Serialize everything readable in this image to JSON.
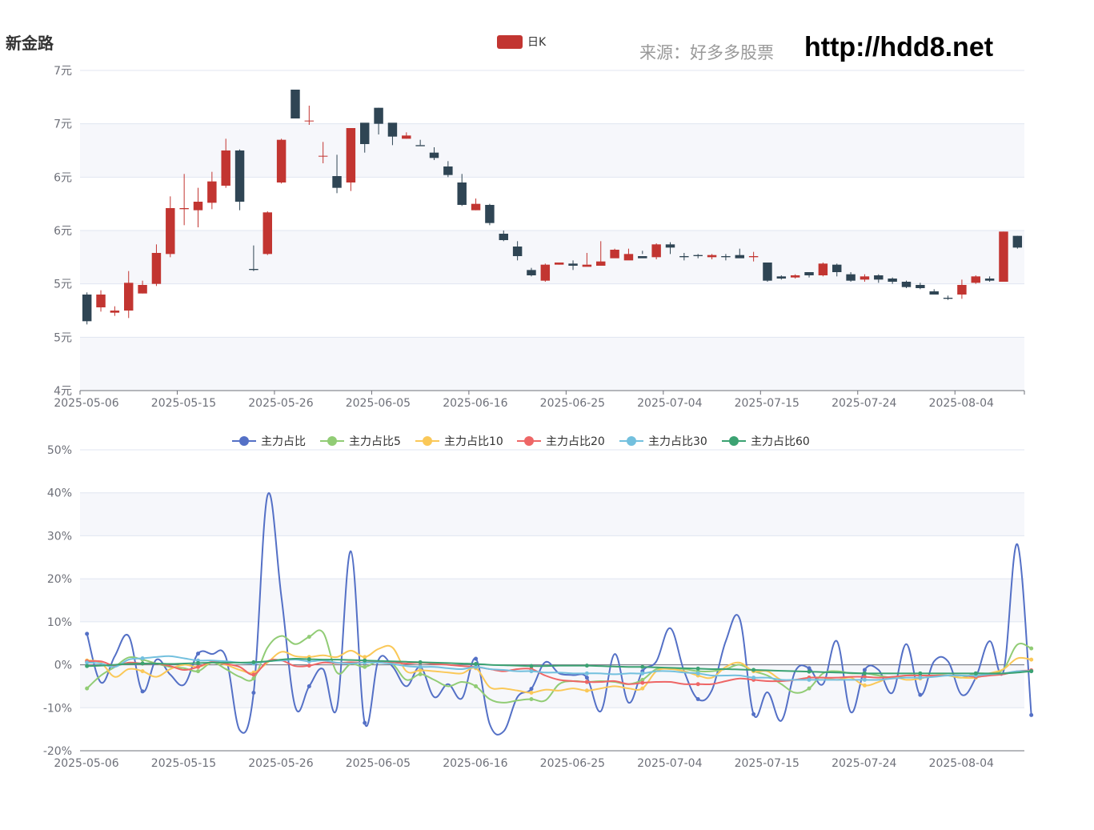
{
  "title": "新金路",
  "source_label": "来源：好多多股票",
  "site_url": "http://hdd8.net",
  "colors": {
    "up": "#c23531",
    "down": "#2f4554",
    "grid": "#e0e6f1",
    "band": "#f6f7fb"
  },
  "chart_data": [
    {
      "type": "candlestick",
      "legend": [
        {
          "name": "日K",
          "color": "#c23531"
        }
      ],
      "x_tick_labels": [
        "2025-05-06",
        "2025-05-15",
        "2025-05-26",
        "2025-06-05",
        "2025-06-16",
        "2025-06-25",
        "2025-07-04",
        "2025-07-15",
        "2025-07-24",
        "2025-08-04"
      ],
      "y_tick_labels": [
        "4元",
        "5元",
        "5元",
        "6元",
        "6元",
        "7元",
        "7元"
      ],
      "ylim": [
        4.1,
        7.1
      ],
      "ohlc": [
        [
          5.0,
          4.75,
          5.02,
          4.72
        ],
        [
          4.88,
          5.0,
          5.04,
          4.84
        ],
        [
          4.83,
          4.85,
          4.89,
          4.8
        ],
        [
          4.85,
          5.11,
          5.22,
          4.78
        ],
        [
          5.01,
          5.09,
          5.13,
          5.01
        ],
        [
          5.1,
          5.39,
          5.47,
          5.08
        ],
        [
          5.38,
          5.81,
          5.92,
          5.35
        ],
        [
          5.8,
          5.81,
          6.13,
          5.65
        ],
        [
          5.79,
          5.87,
          6.0,
          5.63
        ],
        [
          5.86,
          6.06,
          6.15,
          5.8
        ],
        [
          6.02,
          6.35,
          6.46,
          6.0
        ],
        [
          6.35,
          5.87,
          6.36,
          5.79
        ],
        [
          5.24,
          5.23,
          5.46,
          5.22
        ],
        [
          5.38,
          5.77,
          5.78,
          5.37
        ],
        [
          6.05,
          6.45,
          6.46,
          6.04
        ],
        [
          6.92,
          6.65,
          6.8,
          6.65
        ],
        [
          6.63,
          6.63,
          6.77,
          6.59
        ],
        [
          6.3,
          6.3,
          6.43,
          6.23
        ],
        [
          6.11,
          6.0,
          6.31,
          5.95
        ],
        [
          6.05,
          6.56,
          6.56,
          5.97
        ],
        [
          6.61,
          6.41,
          6.5,
          6.33
        ],
        [
          6.75,
          6.6,
          6.75,
          6.5
        ],
        [
          6.61,
          6.48,
          6.59,
          6.4
        ],
        [
          6.46,
          6.49,
          6.52,
          6.46
        ],
        [
          6.4,
          6.39,
          6.45,
          6.4
        ],
        [
          6.33,
          6.28,
          6.38,
          6.26
        ],
        [
          6.2,
          6.12,
          6.25,
          6.1
        ],
        [
          6.05,
          5.84,
          6.13,
          5.83
        ],
        [
          5.79,
          5.85,
          5.9,
          5.79
        ],
        [
          5.84,
          5.67,
          5.85,
          5.65
        ],
        [
          5.57,
          5.51,
          5.6,
          5.5
        ],
        [
          5.45,
          5.36,
          5.5,
          5.32
        ],
        [
          5.23,
          5.18,
          5.25,
          5.17
        ],
        [
          5.13,
          5.28,
          5.29,
          5.12
        ],
        [
          5.28,
          5.3,
          5.29,
          5.28
        ],
        [
          5.29,
          5.27,
          5.32,
          5.23
        ],
        [
          5.26,
          5.28,
          5.39,
          5.28
        ],
        [
          5.27,
          5.31,
          5.5,
          5.27
        ],
        [
          5.34,
          5.42,
          5.43,
          5.35
        ],
        [
          5.32,
          5.38,
          5.43,
          5.34
        ],
        [
          5.36,
          5.34,
          5.41,
          5.38
        ],
        [
          5.35,
          5.47,
          5.48,
          5.33
        ],
        [
          5.47,
          5.44,
          5.49,
          5.38
        ],
        [
          5.36,
          5.35,
          5.39,
          5.32
        ],
        [
          5.37,
          5.36,
          5.38,
          5.34
        ],
        [
          5.35,
          5.37,
          5.38,
          5.33
        ],
        [
          5.36,
          5.35,
          5.38,
          5.32
        ],
        [
          5.37,
          5.34,
          5.43,
          5.36
        ],
        [
          5.35,
          5.36,
          5.4,
          5.31
        ],
        [
          5.3,
          5.13,
          5.3,
          5.12
        ],
        [
          5.17,
          5.15,
          5.18,
          5.14
        ],
        [
          5.16,
          5.18,
          5.19,
          5.15
        ],
        [
          5.21,
          5.18,
          5.21,
          5.16
        ],
        [
          5.18,
          5.29,
          5.3,
          5.17
        ],
        [
          5.28,
          5.21,
          5.29,
          5.17
        ],
        [
          5.19,
          5.13,
          5.21,
          5.12
        ],
        [
          5.14,
          5.17,
          5.19,
          5.12
        ],
        [
          5.18,
          5.14,
          5.19,
          5.11
        ],
        [
          5.15,
          5.12,
          5.16,
          5.1
        ],
        [
          5.12,
          5.07,
          5.13,
          5.06
        ],
        [
          5.09,
          5.06,
          5.11,
          5.05
        ],
        [
          5.03,
          5.0,
          5.05,
          5.0
        ],
        [
          4.97,
          4.96,
          4.99,
          4.95
        ],
        [
          5.0,
          5.09,
          5.14,
          4.96
        ],
        [
          5.11,
          5.17,
          5.18,
          5.1
        ],
        [
          5.15,
          5.13,
          5.17,
          5.12
        ],
        [
          5.12,
          5.59,
          5.59,
          5.12
        ],
        [
          5.55,
          5.44,
          5.55,
          5.43
        ]
      ]
    },
    {
      "type": "line",
      "x_tick_labels": [
        "2025-05-06",
        "2025-05-15",
        "2025-05-26",
        "2025-06-05",
        "2025-06-16",
        "2025-06-25",
        "2025-07-04",
        "2025-07-15",
        "2025-07-24",
        "2025-08-04"
      ],
      "y_tick_labels": [
        "50%",
        "40%",
        "30%",
        "20%",
        "10%",
        "0%",
        "-10%",
        "-20%"
      ],
      "ylim": [
        -20,
        50
      ],
      "series": [
        {
          "name": "主力占比",
          "color": "#5470c6",
          "values": [
            7.2,
            -4.1,
            2.0,
            6.7,
            -6.2,
            1.2,
            -2.3,
            -4.6,
            2.6,
            2.5,
            1.8,
            -15.2,
            -6.5,
            39.4,
            15.8,
            -9.8,
            -5.0,
            -1.0,
            -10.0,
            26.4,
            -13.5,
            1.2,
            -0.4,
            -5.0,
            -0.5,
            -7.5,
            -4.5,
            -7.8,
            1.4,
            -13.8,
            -15.5,
            -7.5,
            -5.6,
            0.6,
            -2.0,
            -2.4,
            -3.0,
            -10.8,
            2.5,
            -8.8,
            -1.5,
            0.8,
            8.5,
            -1.5,
            -8.0,
            -5.9,
            5.5,
            10.7,
            -11.5,
            -6.4,
            -13.0,
            -1.5,
            -0.8,
            -4.5,
            5.5,
            -11.0,
            -1.2,
            -1.2,
            -6.5,
            4.8,
            -7.0,
            0.8,
            0.8,
            -7.0,
            -3.0,
            5.5,
            -1.5,
            28.0,
            -11.7
          ]
        },
        {
          "name": "主力占比5",
          "color": "#91cc75",
          "values": [
            -5.5,
            -2.5,
            -0.5,
            1.7,
            1.2,
            0.3,
            -0.5,
            -0.8,
            -1.5,
            0.5,
            -1.0,
            -2.8,
            -3.2,
            4.0,
            6.7,
            4.8,
            6.5,
            7.5,
            -1.8,
            0.2,
            -0.5,
            0.8,
            0.2,
            -3.5,
            -2.2,
            -3.5,
            -5.0,
            -4.0,
            -5.0,
            -8.0,
            -8.8,
            -8.3,
            -8.0,
            -8.3,
            -4.5,
            -3.8,
            -4.0,
            -3.8,
            -4.0,
            -4.5,
            -3.5,
            -1.0,
            -0.8,
            -1.0,
            -1.5,
            -1.5,
            -1.0,
            0.0,
            -1.5,
            -2.5,
            -4.5,
            -6.5,
            -5.5,
            -2.0,
            -1.5,
            -2.0,
            -2.0,
            -2.5,
            -3.0,
            -2.5,
            -2.5,
            -2.5,
            -2.5,
            -3.0,
            -2.0,
            -2.0,
            -1.0,
            4.7,
            3.8
          ]
        },
        {
          "name": "主力占比10",
          "color": "#fac858",
          "values": [
            1.0,
            0.5,
            -2.8,
            -1.0,
            -1.5,
            -2.8,
            -1.0,
            0.0,
            -0.5,
            0.5,
            0.0,
            -1.2,
            -1.8,
            0.5,
            3.0,
            2.0,
            1.8,
            2.2,
            1.8,
            3.3,
            1.8,
            3.7,
            4.0,
            -1.5,
            -1.3,
            -1.5,
            -1.8,
            -2.0,
            -0.8,
            -5.2,
            -5.5,
            -6.0,
            -6.5,
            -5.8,
            -6.0,
            -5.5,
            -6.0,
            -5.5,
            -5.0,
            -5.5,
            -5.5,
            -1.5,
            -1.0,
            -1.5,
            -2.5,
            -3.0,
            -0.5,
            0.5,
            -1.5,
            -1.5,
            -3.5,
            -3.5,
            -3.0,
            -3.0,
            -3.5,
            -3.0,
            -4.8,
            -4.0,
            -2.8,
            -3.5,
            -3.2,
            -2.5,
            -2.5,
            -3.0,
            -3.0,
            -2.0,
            -1.0,
            1.5,
            1.2
          ]
        },
        {
          "name": "主力占比20",
          "color": "#ee6666",
          "values": [
            0.8,
            0.8,
            -0.2,
            0.5,
            0.3,
            0.3,
            -0.3,
            -1.2,
            -0.5,
            0.7,
            0.2,
            -0.5,
            -2.3,
            0.8,
            1.0,
            -0.3,
            -0.2,
            0.5,
            0.4,
            0.6,
            0.5,
            0.8,
            0.6,
            0.3,
            0.5,
            0.2,
            0.0,
            -0.3,
            -0.5,
            -1.0,
            -1.5,
            -1.0,
            -1.0,
            -2.5,
            -3.5,
            -3.8,
            -4.0,
            -4.0,
            -3.8,
            -4.5,
            -4.2,
            -4.0,
            -4.0,
            -4.5,
            -4.5,
            -4.5,
            -3.8,
            -3.2,
            -3.5,
            -3.8,
            -3.8,
            -3.5,
            -3.0,
            -3.0,
            -3.0,
            -2.8,
            -2.8,
            -3.0,
            -2.8,
            -2.5,
            -2.5,
            -2.5,
            -2.5,
            -2.5,
            -2.8,
            -2.5,
            -2.2,
            -1.5,
            -1.3
          ]
        },
        {
          "name": "主力占比30",
          "color": "#73c0de",
          "values": [
            0.5,
            0.3,
            -0.5,
            1.2,
            1.5,
            1.8,
            2.0,
            1.5,
            1.0,
            1.0,
            0.8,
            0.5,
            0.3,
            0.8,
            1.0,
            1.2,
            0.8,
            1.0,
            0.5,
            0.3,
            0.5,
            0.5,
            0.2,
            -0.3,
            -0.5,
            -0.5,
            -0.8,
            -1.0,
            -0.5,
            -1.0,
            -1.2,
            -1.5,
            -1.5,
            -1.8,
            -1.8,
            -2.0,
            -2.0,
            -2.0,
            -2.2,
            -2.0,
            -2.0,
            -1.5,
            -1.5,
            -1.8,
            -2.0,
            -2.5,
            -2.5,
            -2.5,
            -3.0,
            -3.0,
            -3.5,
            -3.5,
            -3.5,
            -3.5,
            -3.5,
            -3.5,
            -3.5,
            -3.5,
            -3.2,
            -3.0,
            -3.0,
            -2.8,
            -2.5,
            -2.5,
            -2.5,
            -2.2,
            -2.0,
            -1.5,
            -1.5
          ]
        },
        {
          "name": "主力占比60",
          "color": "#3ba272",
          "values": [
            -0.3,
            -0.2,
            0.0,
            0.2,
            0.3,
            0.3,
            0.2,
            0.3,
            0.4,
            0.5,
            0.5,
            0.5,
            0.6,
            0.8,
            1.2,
            1.4,
            1.3,
            1.2,
            1.2,
            1.1,
            1.0,
            0.9,
            0.8,
            0.7,
            0.6,
            0.5,
            0.4,
            0.3,
            0.2,
            0.0,
            -0.1,
            -0.2,
            -0.3,
            -0.3,
            -0.2,
            -0.2,
            -0.2,
            -0.3,
            -0.4,
            -0.5,
            -0.5,
            -0.6,
            -0.7,
            -0.8,
            -0.9,
            -1.0,
            -1.0,
            -1.1,
            -1.2,
            -1.3,
            -1.4,
            -1.5,
            -1.6,
            -1.7,
            -1.8,
            -1.9,
            -2.0,
            -2.0,
            -2.0,
            -2.0,
            -2.0,
            -2.0,
            -2.0,
            -2.0,
            -2.0,
            -2.0,
            -2.0,
            -1.8,
            -1.5
          ]
        }
      ]
    }
  ]
}
